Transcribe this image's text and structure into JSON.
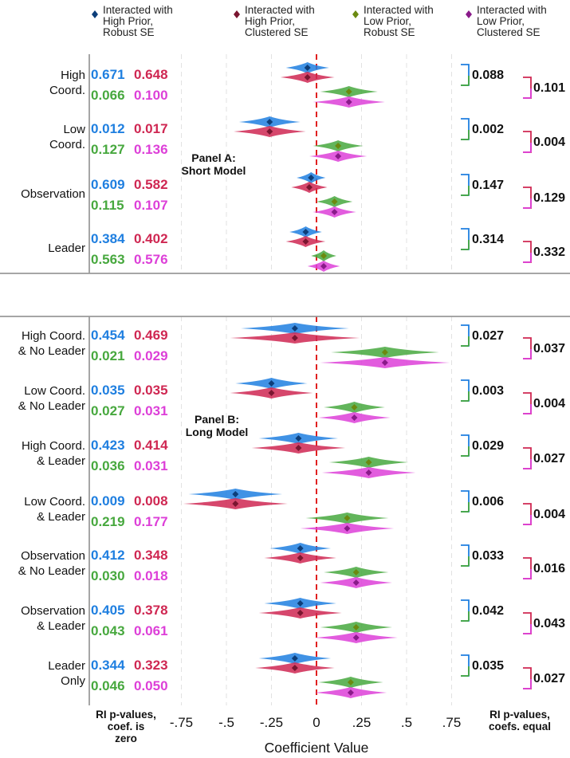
{
  "chart_data": {
    "type": "scatter",
    "xlabel": "Coefficient Value",
    "xlim": [
      -1.0,
      0.8
    ],
    "ticks": [
      {
        "v": -0.75,
        "label": "-.75"
      },
      {
        "v": -0.5,
        "label": "-.5"
      },
      {
        "v": -0.25,
        "label": "-.25"
      },
      {
        "v": 0,
        "label": "0"
      },
      {
        "v": 0.25,
        "label": ".25"
      },
      {
        "v": 0.5,
        "label": ".5"
      },
      {
        "v": 0.75,
        "label": ".75"
      }
    ],
    "reference_line": 0,
    "footer_left": [
      "RI p-values,",
      "coef. is",
      "zero"
    ],
    "footer_right": [
      "RI p-values,",
      "coefs. equal"
    ],
    "series": [
      {
        "name": "Interacted with\nHigh Prior,\nRobust SE",
        "color": "#1f7fe0",
        "dark": "#0d3e7a"
      },
      {
        "name": "Interacted with\nHigh Prior,\nClustered SE",
        "color": "#cf2752",
        "dark": "#7a1530"
      },
      {
        "name": "Interacted with\nLow Prior,\nRobust SE",
        "color": "#47a83e",
        "dark": "#6b8a10"
      },
      {
        "name": "Interacted with\nLow Prior,\nClustered SE",
        "color": "#dd3fd8",
        "dark": "#8a1a8a"
      }
    ],
    "panels": [
      {
        "label": [
          "Panel A:",
          "Short Model"
        ],
        "rows": [
          {
            "label": [
              "High",
              "Coord."
            ],
            "est": [
              -0.05,
              -0.05,
              0.18,
              0.18
            ],
            "ci": [
              0.12,
              0.15,
              0.16,
              0.2
            ],
            "p": [
              "0.671",
              "0.648",
              "0.066",
              "0.100"
            ],
            "eq": [
              "0.088",
              "0.101"
            ]
          },
          {
            "label": [
              "Low",
              "Coord."
            ],
            "est": [
              -0.26,
              -0.26,
              0.12,
              0.12
            ],
            "ci": [
              0.17,
              0.2,
              0.14,
              0.16
            ],
            "p": [
              "0.012",
              "0.017",
              "0.127",
              "0.136"
            ],
            "eq": [
              "0.002",
              "0.004"
            ]
          },
          {
            "label": [
              "Observation"
            ],
            "est": [
              -0.03,
              -0.04,
              0.1,
              0.1
            ],
            "ci": [
              0.08,
              0.1,
              0.1,
              0.12
            ],
            "p": [
              "0.609",
              "0.582",
              "0.115",
              "0.107"
            ],
            "eq": [
              "0.147",
              "0.129"
            ]
          },
          {
            "label": [
              "Leader"
            ],
            "est": [
              -0.06,
              -0.06,
              0.04,
              0.04
            ],
            "ci": [
              0.09,
              0.11,
              0.07,
              0.09
            ],
            "p": [
              "0.384",
              "0.402",
              "0.563",
              "0.576"
            ],
            "eq": [
              "0.314",
              "0.332"
            ]
          }
        ]
      },
      {
        "label": [
          "Panel B:",
          "Long Model"
        ],
        "rows": [
          {
            "label": [
              "High Coord.",
              "& No Leader"
            ],
            "est": [
              -0.12,
              -0.12,
              0.38,
              0.38
            ],
            "ci": [
              0.3,
              0.36,
              0.3,
              0.36
            ],
            "p": [
              "0.454",
              "0.469",
              "0.021",
              "0.029"
            ],
            "eq": [
              "0.027",
              "0.037"
            ]
          },
          {
            "label": [
              "Low Coord.",
              "& No Leader"
            ],
            "est": [
              -0.25,
              -0.25,
              0.21,
              0.21
            ],
            "ci": [
              0.2,
              0.23,
              0.17,
              0.2
            ],
            "p": [
              "0.035",
              "0.035",
              "0.027",
              "0.031"
            ],
            "eq": [
              "0.003",
              "0.004"
            ]
          },
          {
            "label": [
              "High Coord.",
              "& Leader"
            ],
            "est": [
              -0.1,
              -0.1,
              0.29,
              0.29
            ],
            "ci": [
              0.22,
              0.26,
              0.22,
              0.26
            ],
            "p": [
              "0.423",
              "0.414",
              "0.036",
              "0.031"
            ],
            "eq": [
              "0.029",
              "0.027"
            ]
          },
          {
            "label": [
              "Low Coord.",
              "& Leader"
            ],
            "est": [
              -0.45,
              -0.45,
              0.17,
              0.17
            ],
            "ci": [
              0.26,
              0.29,
              0.23,
              0.26
            ],
            "p": [
              "0.009",
              "0.008",
              "0.219",
              "0.177"
            ],
            "eq": [
              "0.006",
              "0.004"
            ]
          },
          {
            "label": [
              "Observation",
              "& No Leader"
            ],
            "est": [
              -0.09,
              -0.09,
              0.22,
              0.22
            ],
            "ci": [
              0.17,
              0.2,
              0.18,
              0.2
            ],
            "p": [
              "0.412",
              "0.348",
              "0.030",
              "0.018"
            ],
            "eq": [
              "0.033",
              "0.016"
            ]
          },
          {
            "label": [
              "Observation",
              "& Leader"
            ],
            "est": [
              -0.09,
              -0.09,
              0.22,
              0.22
            ],
            "ci": [
              0.2,
              0.23,
              0.2,
              0.23
            ],
            "p": [
              "0.405",
              "0.378",
              "0.043",
              "0.061"
            ],
            "eq": [
              "0.042",
              "0.043"
            ]
          },
          {
            "label": [
              "Leader",
              "Only"
            ],
            "est": [
              -0.12,
              -0.12,
              0.19,
              0.19
            ],
            "ci": [
              0.2,
              0.22,
              0.18,
              0.2
            ],
            "p": [
              "0.344",
              "0.323",
              "0.046",
              "0.050"
            ],
            "eq": [
              "0.035",
              "0.027"
            ]
          }
        ]
      }
    ]
  }
}
